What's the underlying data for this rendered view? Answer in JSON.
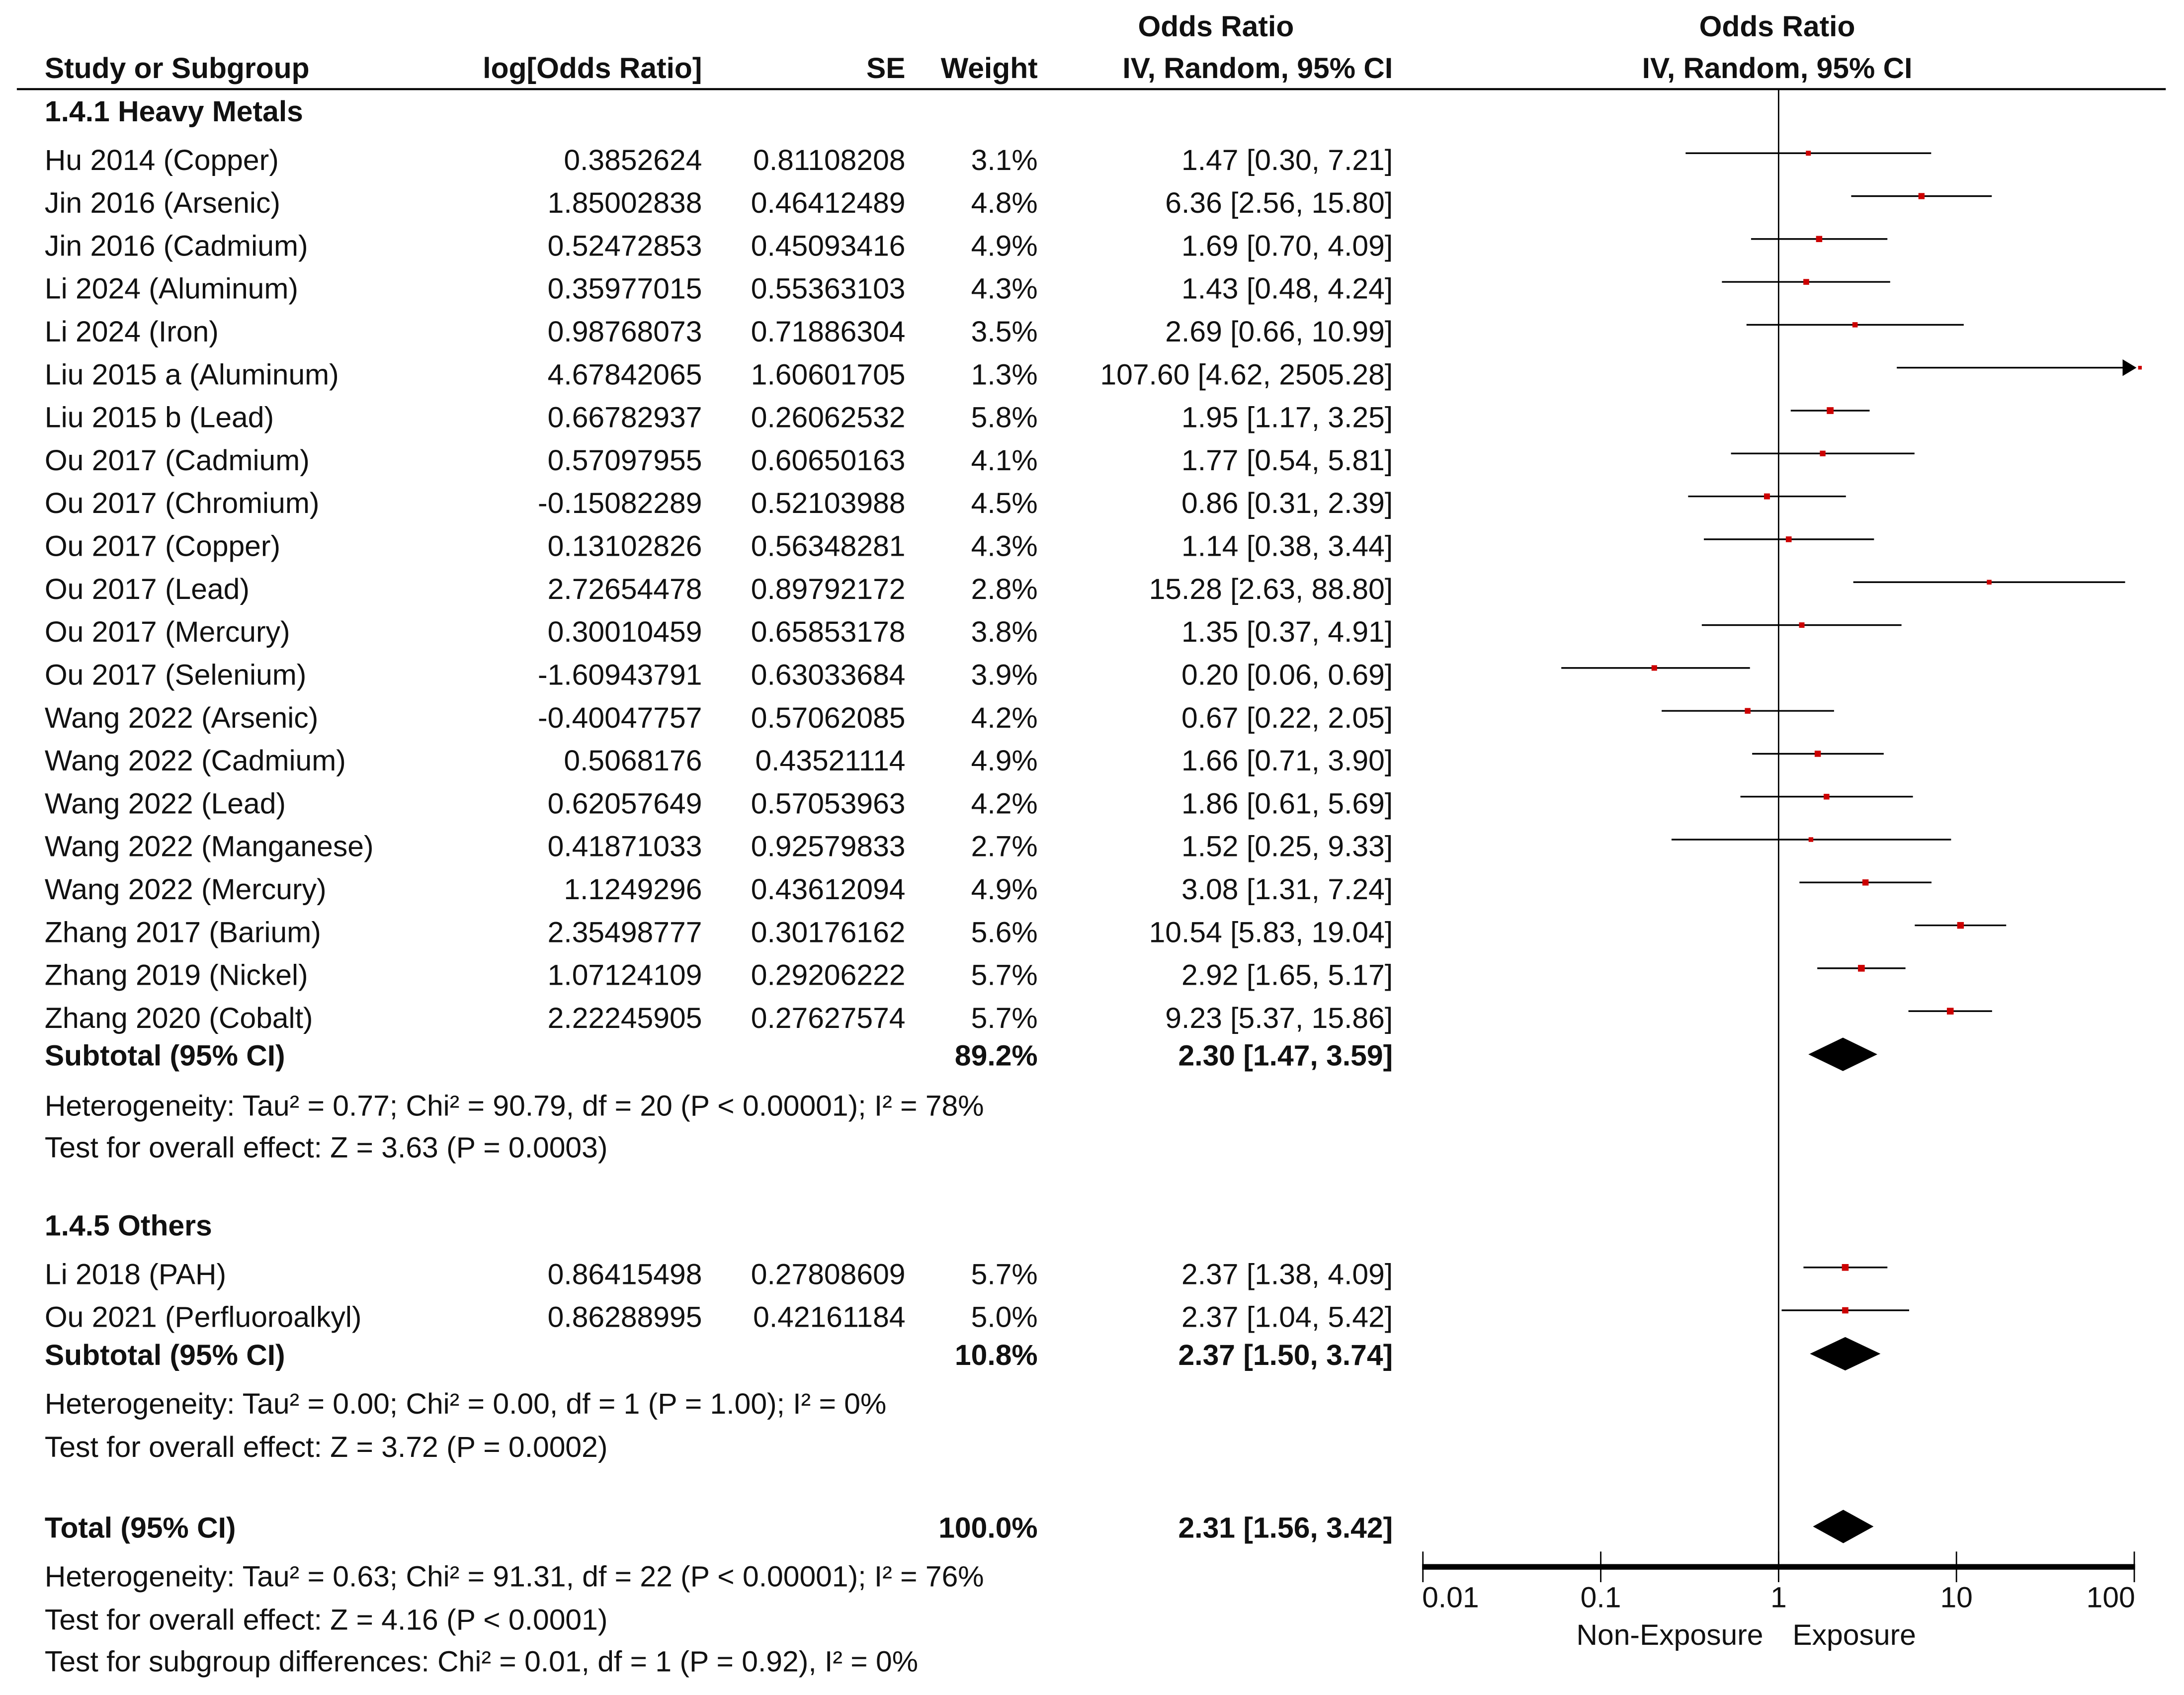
{
  "header": {
    "study": "Study or Subgroup",
    "logor": "log[Odds Ratio]",
    "se": "SE",
    "weight": "Weight",
    "or_title": "Odds Ratio",
    "or_method": "IV, Random, 95% CI",
    "plot_title": "Odds Ratio",
    "plot_method": "IV, Random, 95% CI"
  },
  "chart_data": {
    "type": "forest",
    "x_scale": "log",
    "xlim": [
      0.01,
      100
    ],
    "ticks": [
      "0.01",
      "0.1",
      "1",
      "10",
      "100"
    ],
    "tick_values": [
      0.01,
      0.1,
      1,
      10,
      100
    ],
    "left_label": "Non-Exposure",
    "right_label": "Exposure",
    "marker_color": "#cc0000",
    "subgroups": [
      {
        "title": "1.4.1 Heavy Metals",
        "studies": [
          {
            "name": "Hu 2014 (Copper)",
            "logor": "0.3852624",
            "se": "0.81108208",
            "weight": "3.1%",
            "ci": "1.47 [0.30, 7.21]",
            "or": 1.47,
            "lo": 0.3,
            "hi": 7.21
          },
          {
            "name": "Jin 2016 (Arsenic)",
            "logor": "1.85002838",
            "se": "0.46412489",
            "weight": "4.8%",
            "ci": "6.36 [2.56, 15.80]",
            "or": 6.36,
            "lo": 2.56,
            "hi": 15.8
          },
          {
            "name": "Jin 2016 (Cadmium)",
            "logor": "0.52472853",
            "se": "0.45093416",
            "weight": "4.9%",
            "ci": "1.69 [0.70, 4.09]",
            "or": 1.69,
            "lo": 0.7,
            "hi": 4.09
          },
          {
            "name": "Li 2024 (Aluminum)",
            "logor": "0.35977015",
            "se": "0.55363103",
            "weight": "4.3%",
            "ci": "1.43 [0.48, 4.24]",
            "or": 1.43,
            "lo": 0.48,
            "hi": 4.24
          },
          {
            "name": "Li 2024 (Iron)",
            "logor": "0.98768073",
            "se": "0.71886304",
            "weight": "3.5%",
            "ci": "2.69 [0.66, 10.99]",
            "or": 2.69,
            "lo": 0.66,
            "hi": 10.99
          },
          {
            "name": "Liu 2015 a (Aluminum)",
            "logor": "4.67842065",
            "se": "1.60601705",
            "weight": "1.3%",
            "ci": "107.60 [4.62, 2505.28]",
            "or": 107.6,
            "lo": 4.62,
            "hi": 2505.28
          },
          {
            "name": "Liu 2015 b (Lead)",
            "logor": "0.66782937",
            "se": "0.26062532",
            "weight": "5.8%",
            "ci": "1.95 [1.17, 3.25]",
            "or": 1.95,
            "lo": 1.17,
            "hi": 3.25
          },
          {
            "name": "Ou 2017 (Cadmium)",
            "logor": "0.57097955",
            "se": "0.60650163",
            "weight": "4.1%",
            "ci": "1.77 [0.54, 5.81]",
            "or": 1.77,
            "lo": 0.54,
            "hi": 5.81
          },
          {
            "name": "Ou 2017 (Chromium)",
            "logor": "-0.15082289",
            "se": "0.52103988",
            "weight": "4.5%",
            "ci": "0.86 [0.31, 2.39]",
            "or": 0.86,
            "lo": 0.31,
            "hi": 2.39
          },
          {
            "name": "Ou 2017 (Copper)",
            "logor": "0.13102826",
            "se": "0.56348281",
            "weight": "4.3%",
            "ci": "1.14 [0.38, 3.44]",
            "or": 1.14,
            "lo": 0.38,
            "hi": 3.44
          },
          {
            "name": "Ou 2017 (Lead)",
            "logor": "2.72654478",
            "se": "0.89792172",
            "weight": "2.8%",
            "ci": "15.28 [2.63, 88.80]",
            "or": 15.28,
            "lo": 2.63,
            "hi": 88.8
          },
          {
            "name": "Ou 2017 (Mercury)",
            "logor": "0.30010459",
            "se": "0.65853178",
            "weight": "3.8%",
            "ci": "1.35 [0.37, 4.91]",
            "or": 1.35,
            "lo": 0.37,
            "hi": 4.91
          },
          {
            "name": "Ou 2017 (Selenium)",
            "logor": "-1.60943791",
            "se": "0.63033684",
            "weight": "3.9%",
            "ci": "0.20 [0.06, 0.69]",
            "or": 0.2,
            "lo": 0.06,
            "hi": 0.69
          },
          {
            "name": "Wang 2022 (Arsenic)",
            "logor": "-0.40047757",
            "se": "0.57062085",
            "weight": "4.2%",
            "ci": "0.67 [0.22, 2.05]",
            "or": 0.67,
            "lo": 0.22,
            "hi": 2.05
          },
          {
            "name": "Wang 2022 (Cadmium)",
            "logor": "0.5068176",
            "se": "0.43521114",
            "weight": "4.9%",
            "ci": "1.66 [0.71, 3.90]",
            "or": 1.66,
            "lo": 0.71,
            "hi": 3.9
          },
          {
            "name": "Wang 2022 (Lead)",
            "logor": "0.62057649",
            "se": "0.57053963",
            "weight": "4.2%",
            "ci": "1.86 [0.61, 5.69]",
            "or": 1.86,
            "lo": 0.61,
            "hi": 5.69
          },
          {
            "name": "Wang 2022 (Manganese)",
            "logor": "0.41871033",
            "se": "0.92579833",
            "weight": "2.7%",
            "ci": "1.52 [0.25, 9.33]",
            "or": 1.52,
            "lo": 0.25,
            "hi": 9.33
          },
          {
            "name": "Wang 2022 (Mercury)",
            "logor": "1.1249296",
            "se": "0.43612094",
            "weight": "4.9%",
            "ci": "3.08 [1.31, 7.24]",
            "or": 3.08,
            "lo": 1.31,
            "hi": 7.24
          },
          {
            "name": "Zhang 2017 (Barium)",
            "logor": "2.35498777",
            "se": "0.30176162",
            "weight": "5.6%",
            "ci": "10.54 [5.83, 19.04]",
            "or": 10.54,
            "lo": 5.83,
            "hi": 19.04
          },
          {
            "name": "Zhang 2019 (Nickel)",
            "logor": "1.07124109",
            "se": "0.29206222",
            "weight": "5.7%",
            "ci": "2.92 [1.65, 5.17]",
            "or": 2.92,
            "lo": 1.65,
            "hi": 5.17
          },
          {
            "name": "Zhang 2020 (Cobalt)",
            "logor": "2.22245905",
            "se": "0.27627574",
            "weight": "5.7%",
            "ci": "9.23 [5.37, 15.86]",
            "or": 9.23,
            "lo": 5.37,
            "hi": 15.86
          }
        ],
        "subtotal": {
          "label": "Subtotal (95% CI)",
          "weight": "89.2%",
          "ci": "2.30 [1.47, 3.59]",
          "or": 2.3,
          "lo": 1.47,
          "hi": 3.59
        },
        "heterogeneity": "Heterogeneity: Tau² = 0.77; Chi² = 90.79, df = 20 (P < 0.00001); I² = 78%",
        "overall": "Test for overall effect: Z = 3.63 (P = 0.0003)"
      },
      {
        "title": "1.4.5 Others",
        "studies": [
          {
            "name": "Li 2018 (PAH)",
            "logor": "0.86415498",
            "se": "0.27808609",
            "weight": "5.7%",
            "ci": "2.37 [1.38, 4.09]",
            "or": 2.37,
            "lo": 1.38,
            "hi": 4.09
          },
          {
            "name": "Ou 2021 (Perfluoroalkyl)",
            "logor": "0.86288995",
            "se": "0.42161184",
            "weight": "5.0%",
            "ci": "2.37 [1.04, 5.42]",
            "or": 2.37,
            "lo": 1.04,
            "hi": 5.42
          }
        ],
        "subtotal": {
          "label": "Subtotal (95% CI)",
          "weight": "10.8%",
          "ci": "2.37 [1.50, 3.74]",
          "or": 2.37,
          "lo": 1.5,
          "hi": 3.74
        },
        "heterogeneity": "Heterogeneity: Tau² = 0.00; Chi² = 0.00, df = 1 (P = 1.00); I² = 0%",
        "overall": "Test for overall effect: Z = 3.72 (P = 0.0002)"
      }
    ],
    "total": {
      "label": "Total (95% CI)",
      "weight": "100.0%",
      "ci": "2.31 [1.56, 3.42]",
      "or": 2.31,
      "lo": 1.56,
      "hi": 3.42
    },
    "total_heterogeneity": "Heterogeneity: Tau² = 0.63; Chi² = 91.31, df = 22 (P < 0.00001); I² = 76%",
    "total_overall": "Test for overall effect: Z = 4.16 (P < 0.0001)",
    "subgroup_diff": "Test for subgroup differences: Chi² = 0.01, df = 1 (P = 0.92), I² = 0%"
  }
}
